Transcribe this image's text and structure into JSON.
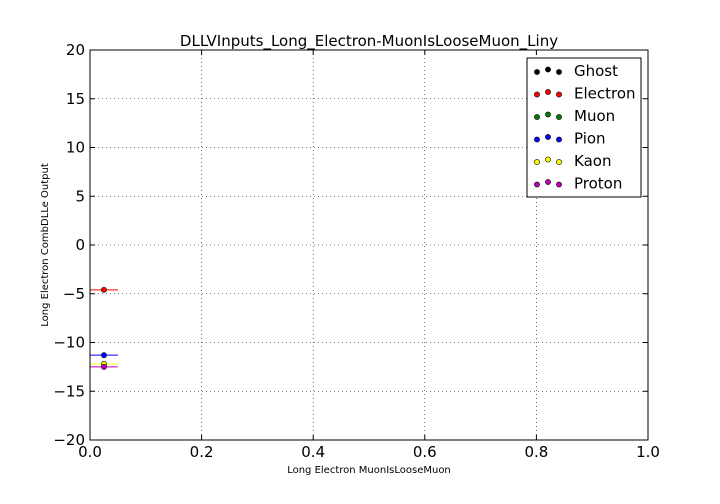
{
  "chart_data": {
    "type": "scatter",
    "title": "DLLVInputs_Long_Electron-MuonIsLooseMuon_Liny",
    "xlabel": "Long Electron MuonIsLooseMuon",
    "ylabel": "Long Electron CombDLLe Output",
    "xlim": [
      0.0,
      1.0
    ],
    "ylim": [
      -20,
      20
    ],
    "x_ticks": [
      "0.0",
      "0.2",
      "0.4",
      "0.6",
      "0.8",
      "1.0"
    ],
    "y_ticks": [
      "20",
      "15",
      "10",
      "5",
      "0",
      "−5",
      "−10",
      "−15",
      "−20"
    ],
    "grid": true,
    "legend_position": "top-right",
    "series": [
      {
        "name": "Ghost",
        "color": "#000000",
        "points": []
      },
      {
        "name": "Electron",
        "color": "#ff0000",
        "points": [
          {
            "x": 0.025,
            "y": -4.6,
            "xerr": 0.025
          }
        ]
      },
      {
        "name": "Muon",
        "color": "#008000",
        "points": []
      },
      {
        "name": "Pion",
        "color": "#0000ff",
        "points": [
          {
            "x": 0.025,
            "y": -11.3,
            "xerr": 0.025
          }
        ]
      },
      {
        "name": "Kaon",
        "color": "#ffff00",
        "points": [
          {
            "x": 0.025,
            "y": -12.2,
            "xerr": 0.025
          }
        ]
      },
      {
        "name": "Proton",
        "color": "#bf00bf",
        "points": [
          {
            "x": 0.025,
            "y": -12.5,
            "xerr": 0.025
          }
        ]
      }
    ]
  }
}
